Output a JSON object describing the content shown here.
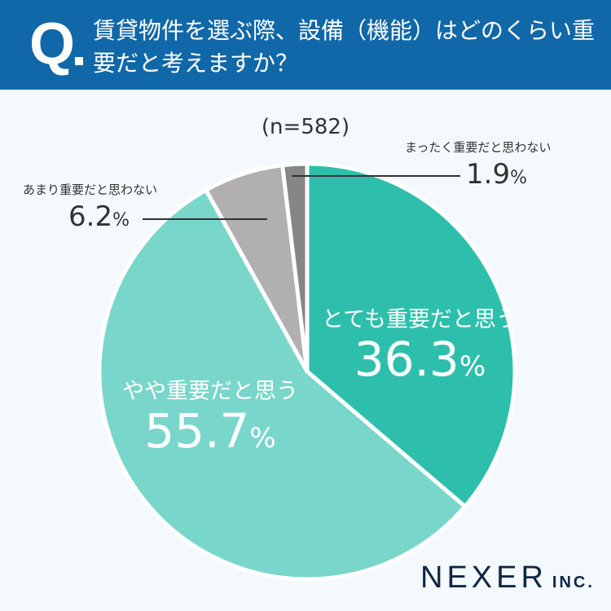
{
  "header": {
    "q_mark": "Q",
    "title": "賃貸物件を選ぶ際、設備（機能）はどのくらい重要だと考えますか？"
  },
  "chart_data": {
    "type": "pie",
    "title": "賃貸物件を選ぶ際、設備（機能）はどのくらい重要だと考えますか？",
    "sample": "(n=582)",
    "unit": "%",
    "slices": [
      {
        "label": "とても重要だと思う",
        "value": 36.3,
        "display": "36.3",
        "color": "#2ebfac"
      },
      {
        "label": "やや重要だと思う",
        "value": 55.7,
        "display": "55.7",
        "color": "#79d6ca"
      },
      {
        "label": "あまり重要だと思わない",
        "value": 6.2,
        "display": "6.2",
        "color": "#b1afaf"
      },
      {
        "label": "まったく重要だと思わない",
        "value": 1.9,
        "display": "1.9",
        "color": "#868686"
      }
    ]
  },
  "logo": {
    "name": "NEXER",
    "suffix": "INC."
  }
}
